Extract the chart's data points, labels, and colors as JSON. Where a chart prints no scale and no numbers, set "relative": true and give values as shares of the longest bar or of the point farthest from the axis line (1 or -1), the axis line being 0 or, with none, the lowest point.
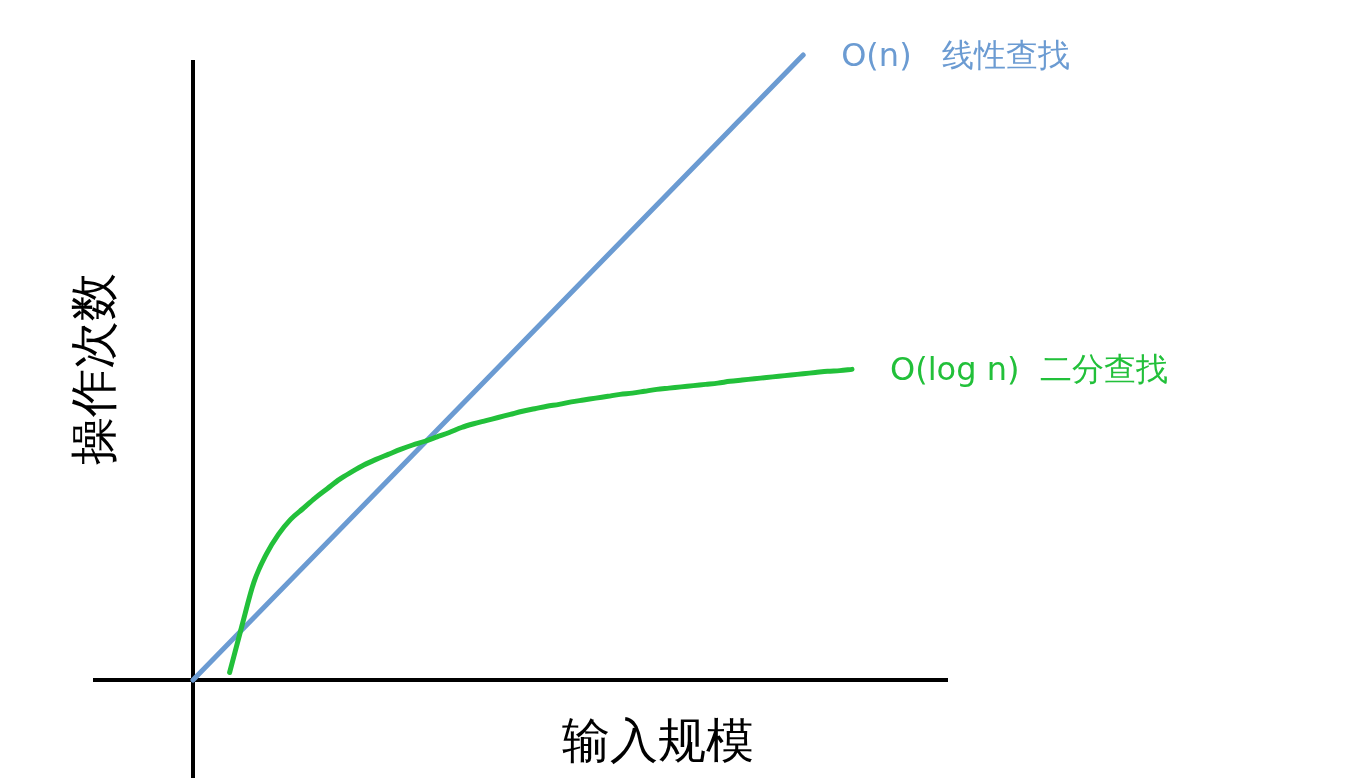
{
  "chart_data": {
    "type": "line",
    "relative": true,
    "xlabel": "输入规模",
    "ylabel": "操作次数",
    "categories": [
      null,
      null,
      null,
      null,
      null,
      null,
      null,
      null,
      null,
      null,
      null,
      null,
      null,
      null,
      null,
      null,
      null,
      null,
      null,
      null,
      null,
      null,
      null,
      null,
      null,
      null,
      null,
      null,
      null,
      null,
      null,
      null,
      null,
      null,
      null,
      null,
      null,
      null,
      null,
      null,
      null,
      null,
      null,
      null,
      null,
      null,
      null,
      null,
      null,
      null,
      null,
      null,
      null,
      null,
      null
    ],
    "series": [
      {
        "name": "O(n)   线性查找",
        "color": "#6b9bd2",
        "values": [
          0,
          0.02,
          0.04,
          0.06,
          0.08,
          0.1,
          0.12,
          0.14,
          0.16,
          0.18,
          0.2,
          0.22,
          0.24,
          0.26,
          0.28,
          0.3,
          0.32,
          0.34,
          0.36,
          0.38,
          0.4,
          0.42,
          0.44,
          0.46,
          0.48,
          0.5,
          0.52,
          0.54,
          0.56,
          0.58,
          0.6,
          0.62,
          0.64,
          0.66,
          0.68,
          0.7,
          0.72,
          0.74,
          0.76,
          0.78,
          0.8,
          0.82,
          0.84,
          0.86,
          0.88,
          0.9,
          0.92,
          0.94,
          0.96,
          0.98,
          1,
          null,
          null,
          null,
          null
        ]
      },
      {
        "name": "O(log n)  二分查找",
        "color": "#22c03a",
        "values": [
          null,
          null,
          null,
          0.012,
          0.086,
          0.157,
          0.201,
          0.233,
          0.257,
          0.274,
          0.291,
          0.306,
          0.321,
          0.333,
          0.344,
          0.353,
          0.361,
          0.369,
          0.376,
          0.382,
          0.389,
          0.396,
          0.404,
          0.41,
          0.415,
          0.42,
          0.425,
          0.43,
          0.434,
          0.438,
          0.441,
          0.445,
          0.448,
          0.451,
          0.454,
          0.457,
          0.459,
          0.462,
          0.465,
          0.467,
          0.469,
          0.471,
          0.473,
          0.475,
          0.478,
          0.48,
          0.482,
          0.484,
          0.486,
          0.488,
          0.49,
          0.492,
          0.494,
          0.495,
          0.497
        ]
      }
    ]
  }
}
